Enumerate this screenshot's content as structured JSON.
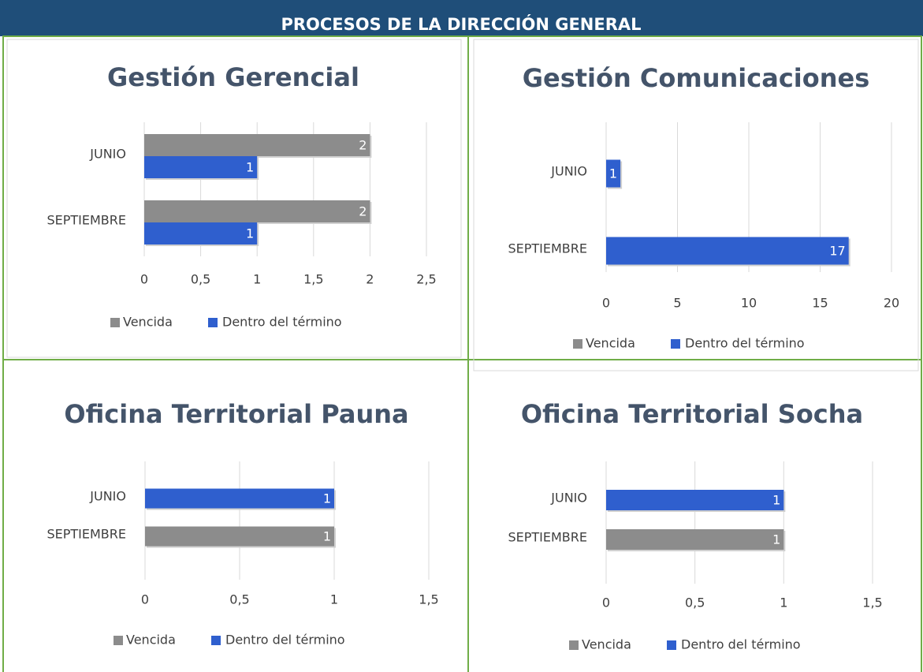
{
  "header": {
    "title": "PROCESOS DE LA DIRECCIÓN GENERAL"
  },
  "chart_data": [
    {
      "type": "hbar",
      "title": "Gestión Gerencial",
      "categories": [
        "JUNIO",
        "SEPTIEMBRE"
      ],
      "series": [
        {
          "name": "Vencida",
          "color": "#8c8c8c",
          "values": [
            2,
            2
          ]
        },
        {
          "name": "Dentro del término",
          "color": "#2f5fce",
          "values": [
            1,
            1
          ]
        }
      ],
      "xlim": [
        0,
        2.5
      ],
      "xticks": [
        0,
        {
          "value": 0.5,
          "label": "0,5"
        },
        1,
        {
          "value": 1.5,
          "label": "1,5"
        },
        2,
        {
          "value": 2.5,
          "label": "2,5"
        }
      ],
      "grid": true,
      "legend": "bottom"
    },
    {
      "type": "hbar",
      "title": "Gestión Comunicaciones",
      "categories": [
        "JUNIO",
        "SEPTIEMBRE"
      ],
      "series": [
        {
          "name": "Vencida",
          "color": "#8c8c8c",
          "values": [
            null,
            null
          ]
        },
        {
          "name": "Dentro del término",
          "color": "#2f5fce",
          "values": [
            1,
            17
          ]
        }
      ],
      "xlim": [
        0,
        20
      ],
      "xticks": [
        0,
        5,
        10,
        15,
        20
      ],
      "grid": true,
      "legend": "bottom"
    },
    {
      "type": "hbar",
      "title": "Oficina Territorial Pauna",
      "categories": [
        "JUNIO",
        "SEPTIEMBRE"
      ],
      "series": [
        {
          "name": "Vencida",
          "color": "#8c8c8c",
          "values": [
            null,
            1
          ]
        },
        {
          "name": "Dentro del término",
          "color": "#2f5fce",
          "values": [
            1,
            null
          ]
        }
      ],
      "xlim": [
        0,
        1.5
      ],
      "xticks": [
        0,
        {
          "value": 0.5,
          "label": "0,5"
        },
        1,
        {
          "value": 1.5,
          "label": "1,5"
        }
      ],
      "grid": true,
      "legend": "bottom"
    },
    {
      "type": "hbar",
      "title": "Oficina Territorial Socha",
      "categories": [
        "JUNIO",
        "SEPTIEMBRE"
      ],
      "series": [
        {
          "name": "Vencida",
          "color": "#8c8c8c",
          "values": [
            null,
            1
          ]
        },
        {
          "name": "Dentro del término",
          "color": "#2f5fce",
          "values": [
            1,
            null
          ]
        }
      ],
      "xlim": [
        0,
        1.5
      ],
      "xticks": [
        0,
        {
          "value": 0.5,
          "label": "0,5"
        },
        1,
        {
          "value": 1.5,
          "label": "1,5"
        }
      ],
      "grid": true,
      "legend": "bottom"
    }
  ]
}
